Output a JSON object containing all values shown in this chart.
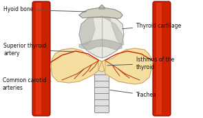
{
  "bg_color": "#ffffff",
  "labels": {
    "hyoid_bone": "Hyoid bone",
    "thyroid_cartilage": "Thyroid cartilage",
    "superior_thyroid_artery": "Superior thyroid\nartery",
    "isthmus": "Isthmus of the\nthyroid",
    "common_carotid": "Common carotid\narteries",
    "trachea": "Trachea"
  },
  "colors": {
    "artery_red": "#cc2200",
    "thyroid_yellow": "#f5dfa0",
    "cartilage_white": "#e8e8e0",
    "trachea_white": "#e0e0e0",
    "trachea_outline": "#888888",
    "text_color": "#111111",
    "line_color": "#555555",
    "hyoid_color": "#d0cfc0",
    "vessel_dark": "#8b0000",
    "artery_highlight": "#ff4422",
    "cartilage_shadow": "#b0b0a8"
  },
  "figsize": [
    2.95,
    1.71
  ],
  "dpi": 100
}
